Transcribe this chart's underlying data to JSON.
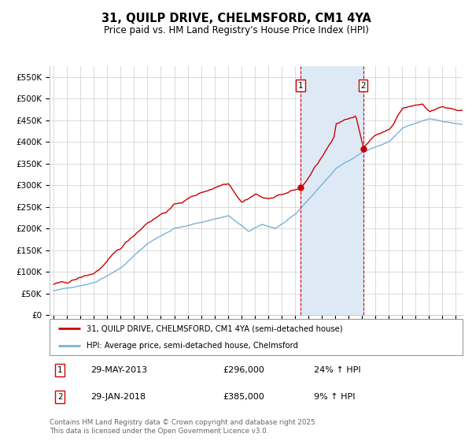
{
  "title": "31, QUILP DRIVE, CHELMSFORD, CM1 4YA",
  "subtitle": "Price paid vs. HM Land Registry's House Price Index (HPI)",
  "ylim": [
    0,
    575000
  ],
  "yticks": [
    0,
    50000,
    100000,
    150000,
    200000,
    250000,
    300000,
    350000,
    400000,
    450000,
    500000,
    550000
  ],
  "ytick_labels": [
    "£0",
    "£50K",
    "£100K",
    "£150K",
    "£200K",
    "£250K",
    "£300K",
    "£350K",
    "£400K",
    "£450K",
    "£500K",
    "£550K"
  ],
  "hpi_color": "#7ab3d4",
  "price_color": "#cc0000",
  "purchase1_x": 2013.42,
  "purchase1_price": 296000,
  "purchase1_hpi_pct": "24%",
  "purchase1_date_label": "29-MAY-2013",
  "purchase1_price_label": "£296,000",
  "purchase2_x": 2018.08,
  "purchase2_price": 385000,
  "purchase2_hpi_pct": "9%",
  "purchase2_date_label": "29-JAN-2018",
  "purchase2_price_label": "£385,000",
  "legend_label1": "31, QUILP DRIVE, CHELMSFORD, CM1 4YA (semi-detached house)",
  "legend_label2": "HPI: Average price, semi-detached house, Chelmsford",
  "footnote": "Contains HM Land Registry data © Crown copyright and database right 2025.\nThis data is licensed under the Open Government Licence v3.0.",
  "shade_color": "#ddeaf5",
  "grid_color": "#cccccc",
  "xlim_left": 1994.7,
  "xlim_right": 2025.5
}
